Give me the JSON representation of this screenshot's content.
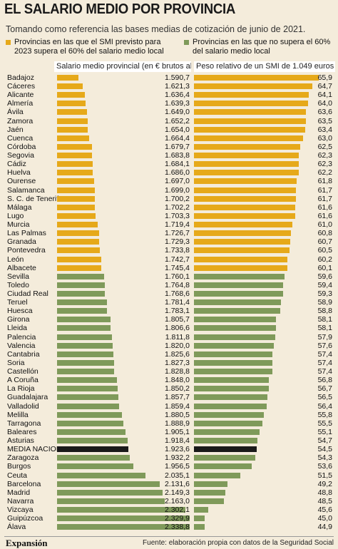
{
  "title": "EL SALARIO MEDIO POR PROVINCIA",
  "subtitle": "Tomando como referencia las bases medias de cotización de junio de 2021.",
  "legend": {
    "yellow": "Provincias en las que el SMI previsto para 2023 supera el 60% del salario medio local",
    "green": "Provincias en las que no supera el 60% del salario medio local"
  },
  "colors": {
    "yellow": "#e6a91a",
    "green": "#7f9a5a",
    "media": "#1a1a1a",
    "background": "#f4ecdb"
  },
  "footer": {
    "logo": "Expansión",
    "source": "Fuente: elaboración propia con datos de la Seguridad Social"
  },
  "chart_data": [
    {
      "type": "bar",
      "orientation": "horizontal",
      "title": "Salario medio provincial (en € brutos al mes)",
      "categories": [
        "Badajoz",
        "Cáceres",
        "Alicante",
        "Almería",
        "Ávila",
        "Zamora",
        "Jaén",
        "Cuenca",
        "Córdoba",
        "Segovia",
        "Cádiz",
        "Huelva",
        "Ourense",
        "Salamanca",
        "S. C. de Tenerife",
        "Málaga",
        "Lugo",
        "Murcia",
        "Las Palmas",
        "Granada",
        "Pontevedra",
        "León",
        "Albacete",
        "Sevilla",
        "Toledo",
        "Ciudad Real",
        "Teruel",
        "Huesca",
        "Girona",
        "Lleida",
        "Palencia",
        "Valencia",
        "Cantabria",
        "Soria",
        "Castellón",
        "A Coruña",
        "La Rioja",
        "Guadalajara",
        "Valladolid",
        "Melilla",
        "Tarragona",
        "Baleares",
        "Asturias",
        "MEDIA NACIONAL",
        "Zaragoza",
        "Burgos",
        "Ceuta",
        "Barcelona",
        "Madrid",
        "Navarra",
        "Vizcaya",
        "Guipúzcoa",
        "Álava"
      ],
      "values": [
        1590.7,
        1621.3,
        1636.4,
        1639.3,
        1649.0,
        1652.2,
        1654.0,
        1664.4,
        1679.7,
        1683.8,
        1684.1,
        1686.0,
        1697.0,
        1699.0,
        1700.2,
        1702.2,
        1703.3,
        1719.4,
        1726.7,
        1729.3,
        1733.8,
        1742.7,
        1745.4,
        1760.1,
        1764.8,
        1768.6,
        1781.4,
        1783.1,
        1805.7,
        1806.6,
        1811.8,
        1820.0,
        1825.6,
        1827.3,
        1828.8,
        1848.0,
        1850.2,
        1857.7,
        1859.4,
        1880.5,
        1888.9,
        1905.1,
        1918.4,
        1923.6,
        1932.2,
        1956.5,
        2035.1,
        2131.6,
        2149.3,
        2163.0,
        2302.1,
        2329.9,
        2338.8
      ],
      "labels": [
        "1.590,7",
        "1.621,3",
        "1.636,4",
        "1.639,3",
        "1.649,0",
        "1.652,2",
        "1.654,0",
        "1.664,4",
        "1.679,7",
        "1.683,8",
        "1.684,1",
        "1.686,0",
        "1.697,0",
        "1.699,0",
        "1.700,2",
        "1.702,2",
        "1.703,3",
        "1.719,4",
        "1.726,7",
        "1.729,3",
        "1.733,8",
        "1.742,7",
        "1.745,4",
        "1.760,1",
        "1.764,8",
        "1.768,6",
        "1.781,4",
        "1.783,1",
        "1.805,7",
        "1.806,6",
        "1.811,8",
        "1.820,0",
        "1.825,6",
        "1.827,3",
        "1.828,8",
        "1.848,0",
        "1.850,2",
        "1.857,7",
        "1.859,4",
        "1.880,5",
        "1.888,9",
        "1.905,1",
        "1.918,4",
        "1.923,6",
        "1.932,2",
        "1.956,5",
        "2.035,1",
        "2.131,6",
        "2.149,3",
        "2.163,0",
        "2.302,1",
        "2.329,9",
        "2.338,8"
      ],
      "group": [
        "yellow",
        "yellow",
        "yellow",
        "yellow",
        "yellow",
        "yellow",
        "yellow",
        "yellow",
        "yellow",
        "yellow",
        "yellow",
        "yellow",
        "yellow",
        "yellow",
        "yellow",
        "yellow",
        "yellow",
        "yellow",
        "yellow",
        "yellow",
        "yellow",
        "yellow",
        "yellow",
        "green",
        "green",
        "green",
        "green",
        "green",
        "green",
        "green",
        "green",
        "green",
        "green",
        "green",
        "green",
        "green",
        "green",
        "green",
        "green",
        "green",
        "green",
        "green",
        "green",
        "media",
        "green",
        "green",
        "green",
        "green",
        "green",
        "green",
        "green",
        "green",
        "green"
      ]
    },
    {
      "type": "bar",
      "orientation": "horizontal",
      "title": "Peso relativo de un SMI de 1.049 euros (%)",
      "values": [
        65.9,
        64.7,
        64.1,
        64.0,
        63.6,
        63.5,
        63.4,
        63.0,
        62.5,
        62.3,
        62.3,
        62.2,
        61.8,
        61.7,
        61.7,
        61.6,
        61.6,
        61.0,
        60.8,
        60.7,
        60.5,
        60.2,
        60.1,
        59.6,
        59.4,
        59.3,
        58.9,
        58.8,
        58.1,
        58.1,
        57.9,
        57.6,
        57.4,
        57.4,
        57.4,
        56.8,
        56.7,
        56.5,
        56.4,
        55.8,
        55.5,
        55.1,
        54.7,
        54.5,
        54.3,
        53.6,
        51.5,
        49.2,
        48.8,
        48.5,
        45.6,
        45.0,
        44.9
      ],
      "labels": [
        "65,9",
        "64,7",
        "64,1",
        "64,0",
        "63,6",
        "63,5",
        "63,4",
        "63,0",
        "62,5",
        "62,3",
        "62,3",
        "62,2",
        "61,8",
        "61,7",
        "61,7",
        "61,6",
        "61,6",
        "61,0",
        "60,8",
        "60,7",
        "60,5",
        "60,2",
        "60,1",
        "59,6",
        "59,4",
        "59,3",
        "58,9",
        "58,8",
        "58,1",
        "58,1",
        "57,9",
        "57,6",
        "57,4",
        "57,4",
        "57,4",
        "56,8",
        "56,7",
        "56,5",
        "56,4",
        "55,8",
        "55,5",
        "55,1",
        "54,7",
        "54,5",
        "54,3",
        "53,6",
        "51,5",
        "49,2",
        "48,8",
        "48,5",
        "45,6",
        "45,0",
        "44,9"
      ]
    }
  ]
}
